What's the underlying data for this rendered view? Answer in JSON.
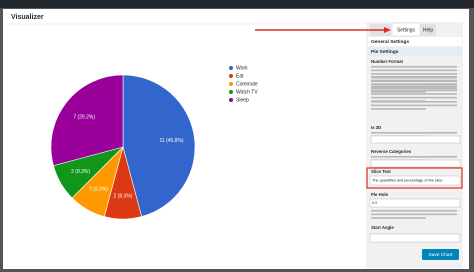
{
  "chart_data": {
    "type": "pie",
    "categories": [
      "Work",
      "Eat",
      "Commute",
      "Watch TV",
      "Sleep"
    ],
    "values": [
      11,
      2,
      2,
      2,
      7
    ],
    "value_labels": [
      "11 (45.8%)",
      "2 (8.3%)",
      "2 (8.3%)",
      "2 (8.3%)",
      "7 (29.2%)"
    ],
    "colors": [
      "#3366cc",
      "#dc3912",
      "#ff9900",
      "#109618",
      "#990099"
    ]
  },
  "ui": {
    "title": "Visualizer",
    "tabs": [
      "Settings",
      "Help"
    ],
    "sections": [
      "General Settings",
      "Pie Settings"
    ],
    "fields": [
      "Number Format",
      "Is 3D",
      "Reverse Categories",
      "Slice Text",
      "Pie Hole",
      "Start Angle"
    ],
    "slice_text_value": "The quantities and percentage of the slice",
    "pie_hole_value": "0.0",
    "button": "Save Chart"
  }
}
